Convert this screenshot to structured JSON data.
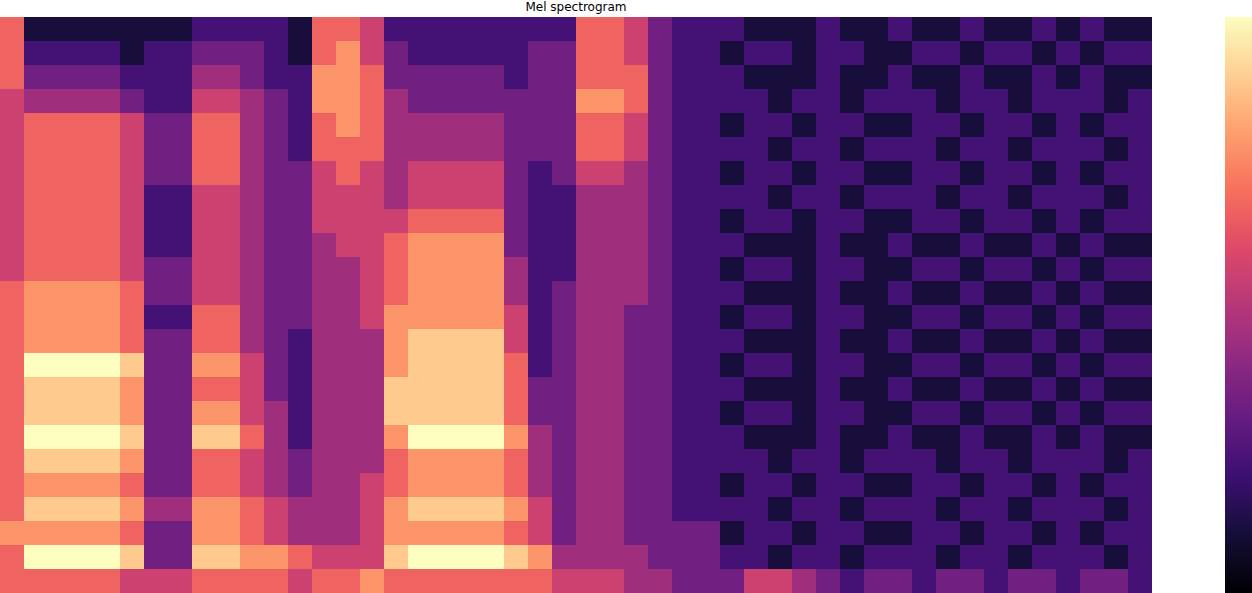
{
  "chart_data": {
    "type": "heatmap",
    "title": "Mel spectrogram",
    "color": "magma",
    "tick_labels": false,
    "xlim": [
      0,
      48
    ],
    "ylim": [
      0,
      24
    ],
    "zlim": [
      0,
      9
    ],
    "cells": [
      [
        6,
        6,
        6,
        6,
        6,
        5,
        5,
        5,
        6,
        6,
        6,
        6,
        5,
        6,
        6,
        7,
        6,
        6,
        6,
        6,
        6,
        6,
        6,
        5,
        5,
        5,
        4,
        4,
        3,
        3,
        3,
        5,
        5,
        4,
        3,
        2,
        3,
        3,
        2,
        3,
        3,
        2,
        3,
        3,
        2,
        3,
        3,
        2
      ],
      [
        6,
        9,
        9,
        9,
        9,
        8,
        3,
        3,
        8,
        8,
        7,
        7,
        6,
        5,
        5,
        5,
        8,
        9,
        9,
        9,
        9,
        8,
        7,
        4,
        4,
        4,
        4,
        3,
        3,
        3,
        2,
        2,
        1,
        2,
        2,
        1,
        2,
        2,
        2,
        1,
        2,
        2,
        1,
        2,
        2,
        2,
        1,
        2
      ],
      [
        7,
        7,
        7,
        7,
        7,
        6,
        3,
        3,
        7,
        7,
        6,
        5,
        4,
        4,
        4,
        5,
        7,
        7,
        7,
        7,
        7,
        6,
        5,
        3,
        4,
        4,
        3,
        3,
        3,
        3,
        1,
        2,
        2,
        1,
        2,
        2,
        1,
        1,
        2,
        2,
        1,
        2,
        2,
        1,
        2,
        1,
        2,
        2
      ],
      [
        6,
        8,
        8,
        8,
        8,
        7,
        4,
        4,
        7,
        7,
        6,
        5,
        4,
        4,
        4,
        5,
        7,
        8,
        8,
        8,
        8,
        7,
        5,
        3,
        4,
        4,
        3,
        3,
        2,
        2,
        2,
        2,
        1,
        2,
        2,
        1,
        2,
        2,
        2,
        1,
        2,
        2,
        1,
        2,
        2,
        2,
        1,
        2
      ],
      [
        6,
        7,
        7,
        7,
        7,
        6,
        3,
        3,
        6,
        6,
        5,
        4,
        3,
        4,
        4,
        5,
        6,
        7,
        7,
        7,
        7,
        6,
        4,
        3,
        4,
        4,
        3,
        3,
        2,
        2,
        1,
        2,
        2,
        1,
        2,
        2,
        1,
        1,
        2,
        2,
        1,
        2,
        2,
        1,
        2,
        1,
        2,
        2
      ],
      [
        6,
        8,
        8,
        8,
        8,
        7,
        3,
        3,
        6,
        6,
        5,
        4,
        3,
        4,
        4,
        4,
        6,
        7,
        7,
        7,
        7,
        6,
        4,
        3,
        4,
        4,
        3,
        3,
        2,
        2,
        2,
        2,
        1,
        2,
        2,
        1,
        2,
        2,
        2,
        1,
        2,
        2,
        1,
        2,
        2,
        2,
        1,
        2
      ],
      [
        6,
        9,
        9,
        9,
        9,
        8,
        3,
        3,
        8,
        8,
        6,
        4,
        2,
        4,
        4,
        4,
        7,
        9,
        9,
        9,
        9,
        7,
        4,
        3,
        4,
        4,
        3,
        3,
        2,
        2,
        2,
        1,
        1,
        1,
        2,
        1,
        1,
        2,
        1,
        1,
        2,
        1,
        1,
        2,
        1,
        2,
        1,
        1
      ],
      [
        6,
        8,
        8,
        8,
        8,
        7,
        3,
        3,
        7,
        7,
        5,
        4,
        2,
        4,
        4,
        4,
        8,
        8,
        8,
        8,
        8,
        6,
        3,
        3,
        4,
        4,
        3,
        3,
        2,
        2,
        1,
        2,
        2,
        1,
        2,
        2,
        1,
        1,
        2,
        2,
        1,
        2,
        2,
        1,
        2,
        1,
        2,
        2
      ],
      [
        6,
        8,
        8,
        8,
        8,
        7,
        3,
        3,
        6,
        6,
        5,
        3,
        2,
        4,
        4,
        4,
        8,
        8,
        8,
        8,
        8,
        6,
        3,
        3,
        4,
        4,
        3,
        3,
        2,
        2,
        2,
        1,
        1,
        1,
        2,
        1,
        1,
        2,
        1,
        1,
        2,
        1,
        1,
        2,
        1,
        2,
        1,
        1
      ],
      [
        6,
        9,
        9,
        9,
        9,
        8,
        3,
        3,
        7,
        7,
        5,
        3,
        2,
        4,
        4,
        4,
        7,
        8,
        8,
        8,
        8,
        6,
        2,
        3,
        4,
        4,
        3,
        3,
        2,
        2,
        1,
        2,
        2,
        1,
        2,
        2,
        1,
        1,
        2,
        2,
        1,
        2,
        2,
        1,
        2,
        1,
        2,
        2
      ],
      [
        6,
        7,
        7,
        7,
        7,
        6,
        3,
        3,
        6,
        6,
        4,
        3,
        2,
        4,
        4,
        4,
        7,
        8,
        8,
        8,
        8,
        5,
        2,
        3,
        4,
        4,
        3,
        3,
        2,
        2,
        2,
        1,
        1,
        1,
        2,
        1,
        1,
        2,
        1,
        1,
        2,
        1,
        1,
        2,
        1,
        2,
        1,
        1
      ],
      [
        6,
        7,
        7,
        7,
        7,
        6,
        2,
        2,
        6,
        6,
        4,
        3,
        3,
        4,
        4,
        5,
        7,
        7,
        7,
        7,
        7,
        5,
        2,
        3,
        4,
        4,
        3,
        3,
        2,
        2,
        1,
        2,
        2,
        1,
        2,
        2,
        1,
        1,
        2,
        2,
        1,
        2,
        2,
        1,
        2,
        1,
        2,
        2
      ],
      [
        6,
        7,
        7,
        7,
        7,
        6,
        3,
        3,
        5,
        5,
        4,
        3,
        3,
        4,
        4,
        5,
        6,
        7,
        7,
        7,
        7,
        4,
        2,
        3,
        4,
        4,
        4,
        3,
        2,
        2,
        2,
        1,
        1,
        1,
        2,
        1,
        1,
        2,
        1,
        1,
        2,
        1,
        1,
        2,
        1,
        2,
        1,
        1
      ],
      [
        5,
        6,
        6,
        6,
        6,
        5,
        3,
        3,
        5,
        5,
        4,
        3,
        3,
        4,
        4,
        5,
        6,
        7,
        7,
        7,
        7,
        4,
        2,
        2,
        4,
        4,
        4,
        3,
        2,
        2,
        1,
        2,
        2,
        1,
        2,
        2,
        1,
        1,
        2,
        2,
        1,
        2,
        2,
        1,
        2,
        1,
        2,
        2
      ],
      [
        5,
        6,
        6,
        6,
        6,
        5,
        2,
        2,
        5,
        5,
        4,
        3,
        3,
        4,
        5,
        5,
        6,
        7,
        7,
        7,
        7,
        3,
        2,
        2,
        4,
        4,
        4,
        3,
        2,
        2,
        2,
        1,
        1,
        1,
        2,
        1,
        1,
        2,
        1,
        1,
        2,
        1,
        1,
        2,
        1,
        2,
        1,
        1
      ],
      [
        5,
        6,
        6,
        6,
        6,
        5,
        2,
        2,
        5,
        5,
        4,
        3,
        3,
        5,
        5,
        5,
        5,
        6,
        6,
        6,
        6,
        3,
        2,
        2,
        4,
        4,
        4,
        3,
        2,
        2,
        1,
        2,
        2,
        1,
        2,
        2,
        1,
        1,
        2,
        2,
        1,
        2,
        2,
        1,
        2,
        1,
        2,
        2
      ],
      [
        5,
        6,
        6,
        6,
        6,
        5,
        2,
        2,
        5,
        5,
        4,
        3,
        3,
        5,
        5,
        5,
        4,
        5,
        5,
        5,
        5,
        3,
        2,
        2,
        4,
        4,
        4,
        3,
        2,
        2,
        2,
        2,
        1,
        2,
        2,
        1,
        2,
        2,
        2,
        1,
        2,
        2,
        1,
        2,
        2,
        2,
        1,
        2
      ],
      [
        5,
        6,
        6,
        6,
        6,
        5,
        3,
        3,
        6,
        6,
        4,
        3,
        3,
        5,
        6,
        5,
        4,
        5,
        5,
        5,
        5,
        3,
        2,
        3,
        5,
        5,
        4,
        3,
        2,
        2,
        1,
        2,
        2,
        1,
        2,
        2,
        1,
        1,
        2,
        2,
        1,
        2,
        2,
        1,
        2,
        1,
        2,
        2
      ],
      [
        5,
        6,
        6,
        6,
        6,
        5,
        3,
        3,
        6,
        6,
        4,
        3,
        2,
        6,
        6,
        6,
        4,
        4,
        4,
        4,
        4,
        3,
        3,
        3,
        6,
        6,
        5,
        3,
        2,
        2,
        2,
        2,
        1,
        2,
        2,
        1,
        2,
        2,
        2,
        1,
        2,
        2,
        1,
        2,
        2,
        2,
        1,
        2
      ],
      [
        5,
        6,
        6,
        6,
        6,
        5,
        3,
        3,
        6,
        6,
        4,
        3,
        2,
        6,
        7,
        6,
        4,
        4,
        4,
        4,
        4,
        3,
        3,
        3,
        6,
        6,
        5,
        3,
        2,
        2,
        1,
        2,
        2,
        1,
        2,
        2,
        1,
        1,
        2,
        2,
        1,
        2,
        2,
        1,
        2,
        1,
        2,
        2
      ],
      [
        5,
        4,
        4,
        4,
        4,
        3,
        2,
        2,
        5,
        5,
        4,
        3,
        2,
        7,
        7,
        6,
        4,
        3,
        3,
        3,
        3,
        3,
        3,
        3,
        7,
        7,
        6,
        3,
        2,
        2,
        2,
        2,
        1,
        2,
        2,
        1,
        2,
        2,
        2,
        1,
        2,
        2,
        1,
        2,
        2,
        2,
        1,
        2
      ],
      [
        6,
        3,
        3,
        3,
        3,
        2,
        2,
        2,
        4,
        4,
        3,
        2,
        2,
        7,
        7,
        6,
        3,
        3,
        3,
        3,
        3,
        2,
        3,
        3,
        6,
        6,
        6,
        3,
        2,
        2,
        2,
        1,
        1,
        1,
        2,
        1,
        1,
        2,
        1,
        1,
        2,
        1,
        1,
        2,
        1,
        2,
        1,
        1
      ],
      [
        6,
        2,
        2,
        2,
        2,
        1,
        2,
        2,
        3,
        3,
        3,
        2,
        1,
        6,
        7,
        5,
        3,
        2,
        2,
        2,
        2,
        2,
        3,
        3,
        6,
        6,
        5,
        3,
        2,
        2,
        1,
        2,
        2,
        1,
        2,
        2,
        1,
        1,
        2,
        2,
        1,
        2,
        2,
        1,
        2,
        1,
        2,
        2
      ],
      [
        6,
        1,
        1,
        1,
        1,
        1,
        1,
        1,
        2,
        2,
        2,
        2,
        1,
        6,
        6,
        5,
        2,
        2,
        2,
        2,
        2,
        2,
        2,
        2,
        6,
        6,
        5,
        3,
        2,
        2,
        2,
        1,
        1,
        1,
        2,
        1,
        1,
        2,
        1,
        1,
        2,
        1,
        1,
        2,
        1,
        2,
        1,
        1
      ]
    ]
  }
}
